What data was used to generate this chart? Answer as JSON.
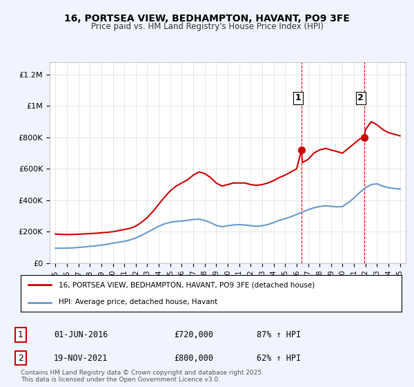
{
  "title1": "16, PORTSEA VIEW, BEDHAMPTON, HAVANT, PO9 3FE",
  "title2": "Price paid vs. HM Land Registry's House Price Index (HPI)",
  "red_label": "16, PORTSEA VIEW, BEDHAMPTON, HAVANT, PO9 3FE (detached house)",
  "blue_label": "HPI: Average price, detached house, Havant",
  "annotation1": {
    "num": "1",
    "date": "01-JUN-2016",
    "price": "£720,000",
    "hpi": "87% ↑ HPI",
    "x_year": 2016.42
  },
  "annotation2": {
    "num": "2",
    "date": "19-NOV-2021",
    "price": "£800,000",
    "hpi": "62% ↑ HPI",
    "x_year": 2021.88
  },
  "vline_x1": 2016.42,
  "vline_x2": 2021.88,
  "ylabel_ticks": [
    "£0",
    "£200K",
    "£400K",
    "£600K",
    "£800K",
    "£1M",
    "£1.2M"
  ],
  "ytick_vals": [
    0,
    200000,
    400000,
    600000,
    800000,
    1000000,
    1200000
  ],
  "ylim": [
    0,
    1280000
  ],
  "xlim_start": 1994.5,
  "xlim_end": 2025.5,
  "background_color": "#f0f4ff",
  "plot_bg_color": "#ffffff",
  "red_color": "#cc0000",
  "blue_color": "#6699cc",
  "vline_color": "#cc0000",
  "copyright_text": "Contains HM Land Registry data © Crown copyright and database right 2025.\nThis data is licensed under the Open Government Licence v3.0.",
  "red_data": {
    "years": [
      1995.0,
      1995.5,
      1996.0,
      1996.5,
      1997.0,
      1997.5,
      1998.0,
      1998.5,
      1999.0,
      1999.5,
      2000.0,
      2000.5,
      2001.0,
      2001.5,
      2002.0,
      2002.5,
      2003.0,
      2003.5,
      2004.0,
      2004.5,
      2005.0,
      2005.5,
      2006.0,
      2006.5,
      2007.0,
      2007.5,
      2008.0,
      2008.5,
      2009.0,
      2009.5,
      2010.0,
      2010.5,
      2011.0,
      2011.5,
      2012.0,
      2012.5,
      2013.0,
      2013.5,
      2014.0,
      2014.5,
      2015.0,
      2015.5,
      2016.0,
      2016.42,
      2016.5,
      2017.0,
      2017.5,
      2018.0,
      2018.5,
      2019.0,
      2019.5,
      2020.0,
      2020.5,
      2021.0,
      2021.5,
      2021.88,
      2022.0,
      2022.5,
      2023.0,
      2023.5,
      2024.0,
      2024.5,
      2025.0
    ],
    "values": [
      185000,
      183000,
      182000,
      183000,
      184000,
      186000,
      188000,
      190000,
      193000,
      196000,
      200000,
      207000,
      214000,
      222000,
      235000,
      260000,
      290000,
      330000,
      375000,
      420000,
      460000,
      490000,
      510000,
      530000,
      560000,
      580000,
      570000,
      545000,
      510000,
      490000,
      500000,
      510000,
      510000,
      510000,
      500000,
      495000,
      500000,
      510000,
      525000,
      545000,
      560000,
      580000,
      600000,
      720000,
      640000,
      660000,
      700000,
      720000,
      730000,
      720000,
      710000,
      700000,
      730000,
      760000,
      790000,
      800000,
      850000,
      900000,
      880000,
      850000,
      830000,
      820000,
      810000
    ]
  },
  "blue_data": {
    "years": [
      1995.0,
      1995.5,
      1996.0,
      1996.5,
      1997.0,
      1997.5,
      1998.0,
      1998.5,
      1999.0,
      1999.5,
      2000.0,
      2000.5,
      2001.0,
      2001.5,
      2002.0,
      2002.5,
      2003.0,
      2003.5,
      2004.0,
      2004.5,
      2005.0,
      2005.5,
      2006.0,
      2006.5,
      2007.0,
      2007.5,
      2008.0,
      2008.5,
      2009.0,
      2009.5,
      2010.0,
      2010.5,
      2011.0,
      2011.5,
      2012.0,
      2012.5,
      2013.0,
      2013.5,
      2014.0,
      2014.5,
      2015.0,
      2015.5,
      2016.0,
      2016.5,
      2017.0,
      2017.5,
      2018.0,
      2018.5,
      2019.0,
      2019.5,
      2020.0,
      2020.5,
      2021.0,
      2021.5,
      2022.0,
      2022.5,
      2023.0,
      2023.5,
      2024.0,
      2024.5,
      2025.0
    ],
    "values": [
      95000,
      95000,
      96000,
      97000,
      100000,
      103000,
      107000,
      110000,
      115000,
      120000,
      127000,
      133000,
      139000,
      148000,
      160000,
      177000,
      196000,
      216000,
      235000,
      250000,
      260000,
      265000,
      268000,
      272000,
      278000,
      280000,
      272000,
      258000,
      240000,
      232000,
      238000,
      243000,
      245000,
      243000,
      238000,
      235000,
      238000,
      246000,
      258000,
      272000,
      283000,
      295000,
      310000,
      325000,
      340000,
      352000,
      360000,
      365000,
      362000,
      358000,
      360000,
      385000,
      415000,
      450000,
      480000,
      500000,
      505000,
      490000,
      480000,
      475000,
      472000
    ]
  }
}
